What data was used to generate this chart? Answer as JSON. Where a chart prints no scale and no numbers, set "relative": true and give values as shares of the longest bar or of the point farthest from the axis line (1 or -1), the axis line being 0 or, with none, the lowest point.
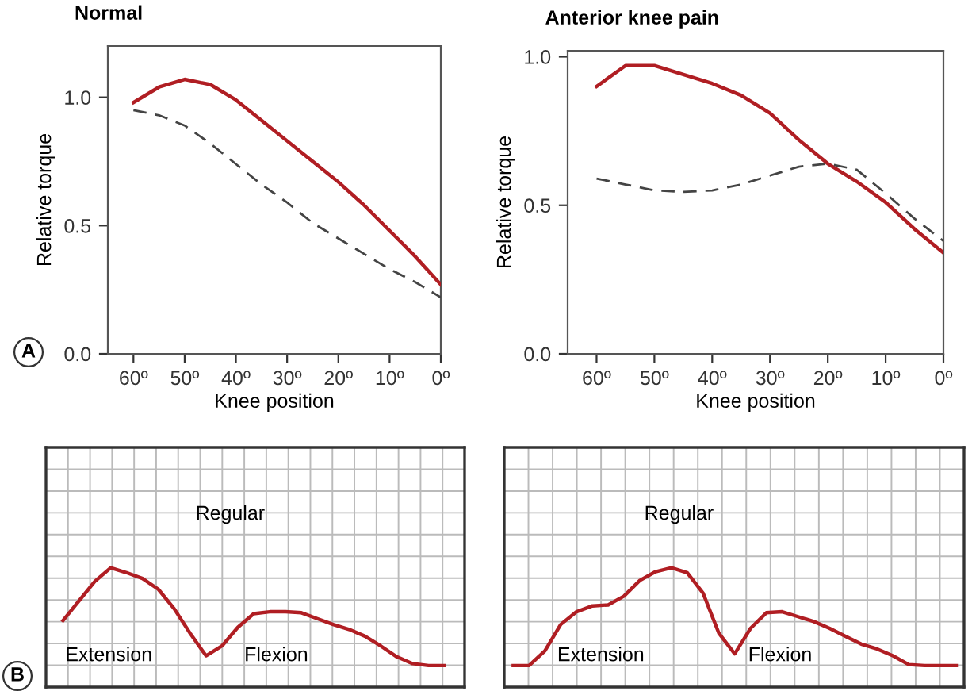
{
  "chart_data": [
    {
      "type": "line",
      "title": "Normal",
      "xlabel": "Knee position",
      "ylabel": "Relative torque",
      "annotations": [
        "A"
      ],
      "x": [
        60,
        55,
        50,
        45,
        40,
        35,
        30,
        25,
        20,
        15,
        10,
        5,
        0
      ],
      "series": [
        {
          "color": "#b01e23",
          "values": [
            0.98,
            1.04,
            1.07,
            1.05,
            0.99,
            0.91,
            0.83,
            0.75,
            0.67,
            0.58,
            0.48,
            0.38,
            0.27
          ],
          "line_style": "solid"
        },
        {
          "color": "#444444",
          "values": [
            0.95,
            0.93,
            0.89,
            0.82,
            0.74,
            0.66,
            0.59,
            0.51,
            0.45,
            0.39,
            0.33,
            0.28,
            0.22
          ],
          "line_style": "dashed"
        }
      ],
      "xlim": [
        65,
        0
      ],
      "ylim": [
        0,
        1.2
      ],
      "xticks": [
        {
          "value": 60,
          "label": "60º"
        },
        {
          "value": 50,
          "label": "50º"
        },
        {
          "value": 40,
          "label": "40º"
        },
        {
          "value": 30,
          "label": "30º"
        },
        {
          "value": 20,
          "label": "20º"
        },
        {
          "value": 10,
          "label": "10º"
        },
        {
          "value": 0,
          "label": "0º"
        }
      ],
      "yticks": [
        {
          "value": 0,
          "label": "0.0"
        },
        {
          "value": 0.5,
          "label": "0.5"
        },
        {
          "value": 1.0,
          "label": "1.0"
        }
      ]
    },
    {
      "type": "line",
      "title": "Anterior knee pain",
      "xlabel": "Knee position",
      "ylabel": "Relative torque",
      "x": [
        60,
        55,
        50,
        45,
        40,
        35,
        30,
        25,
        20,
        15,
        10,
        5,
        0
      ],
      "series": [
        {
          "color": "#b01e23",
          "values": [
            0.9,
            0.97,
            0.97,
            0.94,
            0.91,
            0.87,
            0.81,
            0.72,
            0.64,
            0.58,
            0.51,
            0.42,
            0.34
          ],
          "line_style": "solid"
        },
        {
          "color": "#444444",
          "values": [
            0.59,
            0.57,
            0.55,
            0.545,
            0.55,
            0.57,
            0.6,
            0.63,
            0.64,
            0.62,
            0.54,
            0.455,
            0.38
          ],
          "line_style": "dashed"
        }
      ],
      "xlim": [
        65,
        0
      ],
      "ylim": [
        0,
        1.02
      ],
      "xticks": [
        {
          "value": 60,
          "label": "60º"
        },
        {
          "value": 50,
          "label": "50º"
        },
        {
          "value": 40,
          "label": "40º"
        },
        {
          "value": 30,
          "label": "30º"
        },
        {
          "value": 20,
          "label": "20º"
        },
        {
          "value": 10,
          "label": "10º"
        },
        {
          "value": 0,
          "label": "0º"
        }
      ],
      "yticks": [
        {
          "value": 0,
          "label": "0.0"
        },
        {
          "value": 0.5,
          "label": "0.5"
        },
        {
          "value": 1.0,
          "label": "1.0"
        }
      ]
    },
    {
      "type": "line",
      "relative": true,
      "grid": true,
      "annotations": [
        "Regular",
        "Extension",
        "Flexion",
        "B"
      ],
      "categories": [
        null,
        null,
        null,
        null,
        null,
        null,
        null,
        null,
        null,
        null,
        null,
        null,
        null,
        null,
        null,
        null,
        null,
        null,
        null,
        null,
        null,
        null,
        null,
        null,
        null
      ],
      "series": [
        {
          "color": "#b01e23",
          "values": [
            0.46,
            0.66,
            0.86,
            1.0,
            0.95,
            0.89,
            0.78,
            0.58,
            0.33,
            0.1,
            0.2,
            0.39,
            0.53,
            0.55,
            0.55,
            0.54,
            0.48,
            0.42,
            0.37,
            0.3,
            0.2,
            0.09,
            0.02,
            0,
            0
          ]
        }
      ]
    },
    {
      "type": "line",
      "relative": true,
      "grid": true,
      "annotations": [
        "Regular",
        "Extension",
        "Flexion"
      ],
      "categories": [
        null,
        null,
        null,
        null,
        null,
        null,
        null,
        null,
        null,
        null,
        null,
        null,
        null,
        null,
        null,
        null,
        null,
        null,
        null,
        null,
        null,
        null,
        null,
        null,
        null,
        null,
        null,
        null,
        null
      ],
      "series": [
        {
          "color": "#b01e23",
          "values": [
            0,
            0,
            0.15,
            0.42,
            0.55,
            0.61,
            0.62,
            0.71,
            0.87,
            0.96,
            1.0,
            0.95,
            0.74,
            0.33,
            0.12,
            0.38,
            0.54,
            0.55,
            0.5,
            0.45,
            0.38,
            0.3,
            0.22,
            0.17,
            0.1,
            0.01,
            0,
            0,
            0
          ]
        }
      ]
    }
  ]
}
